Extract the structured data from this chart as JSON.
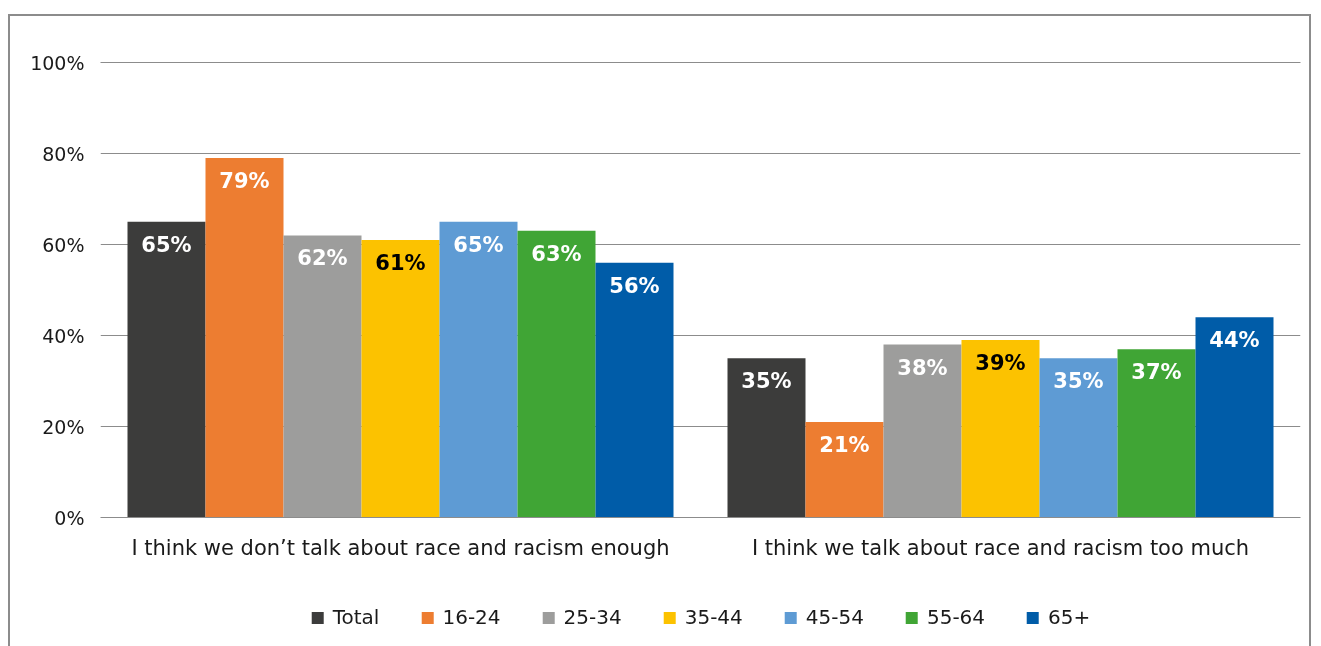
{
  "chart_data": {
    "type": "bar",
    "categories": [
      "I think we don’t talk about race and racism enough",
      "I think we talk about race and racism too much"
    ],
    "series": [
      {
        "name": "Total",
        "color": "#3c3c3b",
        "values": [
          65,
          35
        ],
        "value_labels": [
          "65%",
          "35%"
        ]
      },
      {
        "name": "16-24",
        "color": "#ed7d31",
        "values": [
          79,
          21
        ],
        "value_labels": [
          "79%",
          "21%"
        ]
      },
      {
        "name": "25-34",
        "color": "#9d9d9c",
        "values": [
          62,
          38
        ],
        "value_labels": [
          "62%",
          "38%"
        ]
      },
      {
        "name": "35-44",
        "color": "#fcc200",
        "values": [
          61,
          39
        ],
        "value_labels": [
          "61%",
          "39%"
        ]
      },
      {
        "name": "45-54",
        "color": "#5e9bd4",
        "values": [
          65,
          35
        ],
        "value_labels": [
          "65%",
          "35%"
        ]
      },
      {
        "name": "55-64",
        "color": "#40a535",
        "values": [
          63,
          37
        ],
        "value_labels": [
          "63%",
          "37%"
        ]
      },
      {
        "name": "65+",
        "color": "#005ca8",
        "values": [
          56,
          44
        ],
        "value_labels": [
          "56%",
          "44%"
        ]
      }
    ],
    "ylim": [
      0,
      100
    ],
    "yticks": [
      {
        "value": 0,
        "label": "0%"
      },
      {
        "value": 20,
        "label": "20%"
      },
      {
        "value": 40,
        "label": "40%"
      },
      {
        "value": 60,
        "label": "60%"
      },
      {
        "value": 80,
        "label": "80%"
      },
      {
        "value": 100,
        "label": "100%"
      }
    ],
    "grid": "y",
    "legend": "bottom"
  }
}
